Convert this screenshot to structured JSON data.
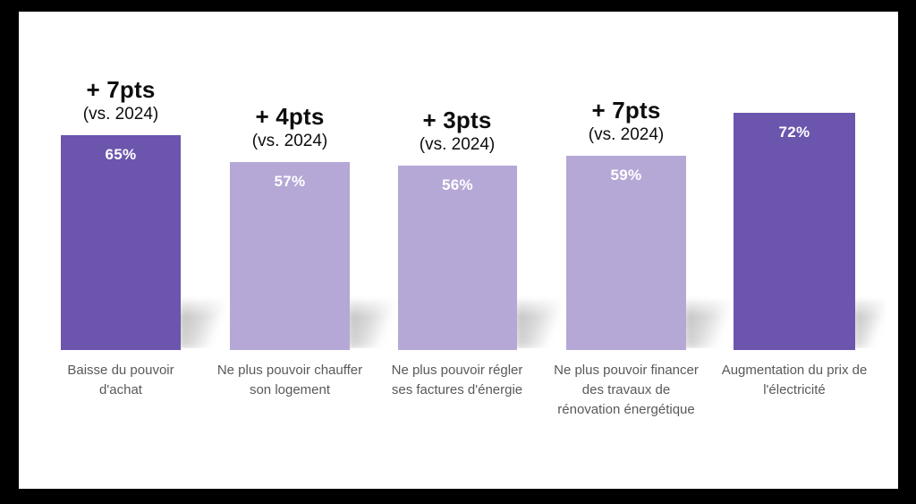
{
  "frame": {
    "background": "#000000",
    "sheet_background": "#ffffff"
  },
  "chart_data": {
    "type": "bar",
    "title": "",
    "xlabel": "",
    "ylabel": "",
    "ylim": [
      0,
      100
    ],
    "value_suffix": "%",
    "grid": false,
    "legend": false,
    "categories": [
      "Baisse du pouvoir d'achat",
      "Ne plus pouvoir chauffer son logement",
      "Ne plus pouvoir régler ses factures d'énergie",
      "Ne plus pouvoir financer des travaux de rénovation énergétique",
      "Augmentation du prix de l'électricité"
    ],
    "values": [
      65,
      57,
      56,
      59,
      72
    ],
    "deltas_vs_2024": [
      "+ 7pts",
      "+ 4pts",
      "+ 3pts",
      "+ 7pts",
      null
    ],
    "bars": [
      {
        "category_lines": "Baisse du pouvoir\nd'achat",
        "value": 65,
        "value_label": "65%",
        "delta_label": "+ 7pts",
        "vs_label": "(vs. 2024)",
        "shade": "dark"
      },
      {
        "category_lines": "Ne plus pouvoir chauffer\nson logement",
        "value": 57,
        "value_label": "57%",
        "delta_label": "+ 4pts",
        "vs_label": "(vs. 2024)",
        "shade": "light"
      },
      {
        "category_lines": "Ne plus pouvoir régler\nses factures d'énergie",
        "value": 56,
        "value_label": "56%",
        "delta_label": "+ 3pts",
        "vs_label": "(vs. 2024)",
        "shade": "light"
      },
      {
        "category_lines": "Ne plus pouvoir financer\ndes travaux de\nrénovation énergétique",
        "value": 59,
        "value_label": "59%",
        "delta_label": "+ 7pts",
        "vs_label": "(vs. 2024)",
        "shade": "light"
      },
      {
        "category_lines": "Augmentation du prix de\nl'électricité",
        "value": 72,
        "value_label": "72%",
        "delta_label": null,
        "vs_label": null,
        "shade": "dark"
      }
    ],
    "colors": {
      "dark": "#6B55AD",
      "light": "#B5A8D6",
      "label_text": "#595959",
      "value_text": "#ffffff",
      "annotation_text": "#0d0d0d",
      "shadow": "#bdbdbd"
    }
  }
}
